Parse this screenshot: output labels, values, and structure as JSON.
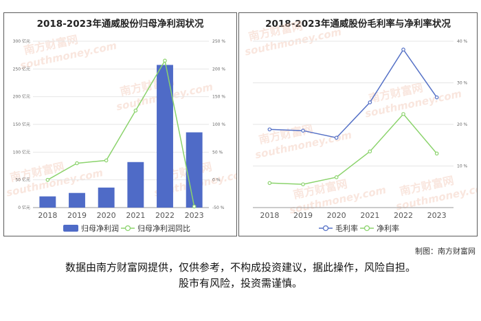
{
  "left": {
    "title": "2018-2023年通威股份归母净利润状况",
    "chart_data": {
      "type": "bar+line",
      "categories": [
        "2018",
        "2019",
        "2020",
        "2021",
        "2022",
        "2023"
      ],
      "series": [
        {
          "name": "归母净利润",
          "type": "bar",
          "axis": "left",
          "color": "#4f6bc7",
          "values": [
            20.2,
            26.4,
            36.1,
            82.1,
            257.3,
            135.7
          ]
        },
        {
          "name": "归母净利润同比",
          "type": "line",
          "axis": "right",
          "color": "#8bd36c",
          "values": [
            0,
            30,
            35,
            125,
            215,
            -48
          ]
        }
      ],
      "ylim_left": [
        0,
        300
      ],
      "yticks_left": [
        "0 亿元",
        "50 亿元",
        "100 亿元",
        "150 亿元",
        "200 亿元",
        "250 亿元",
        "300 亿元"
      ],
      "ylim_right": [
        -50,
        250
      ],
      "yticks_right": [
        "-50 %",
        "0 %",
        "50 %",
        "100 %",
        "150 %",
        "200 %",
        "250 %"
      ],
      "grid": true,
      "legend": "bottom"
    }
  },
  "right": {
    "title": "2018-2023年通威股份毛利率与净利率状况",
    "chart_data": {
      "type": "line",
      "categories": [
        "2018",
        "2019",
        "2020",
        "2021",
        "2022",
        "2023"
      ],
      "series": [
        {
          "name": "毛利率",
          "color": "#5470c6",
          "values": [
            18.8,
            18.5,
            16.8,
            25.3,
            38.0,
            26.5
          ]
        },
        {
          "name": "净利率",
          "color": "#8bd36c",
          "values": [
            5.9,
            5.6,
            7.3,
            13.5,
            22.5,
            13.0
          ]
        }
      ],
      "ylim": [
        0,
        40
      ],
      "yticks": [
        "10 %",
        "20 %",
        "30 %",
        "40 %"
      ],
      "grid": true,
      "legend": "bottom"
    }
  },
  "watermark": {
    "cn": "南方财富网",
    "en": "southmoney.com"
  },
  "credit": "制图：南方财富网",
  "disclaimer_line1": "数据由南方财富网提供，仅供参考，不构成投资建议，据此操作，风险自担。",
  "disclaimer_line2": "股市有风险，投资需谨慎。"
}
